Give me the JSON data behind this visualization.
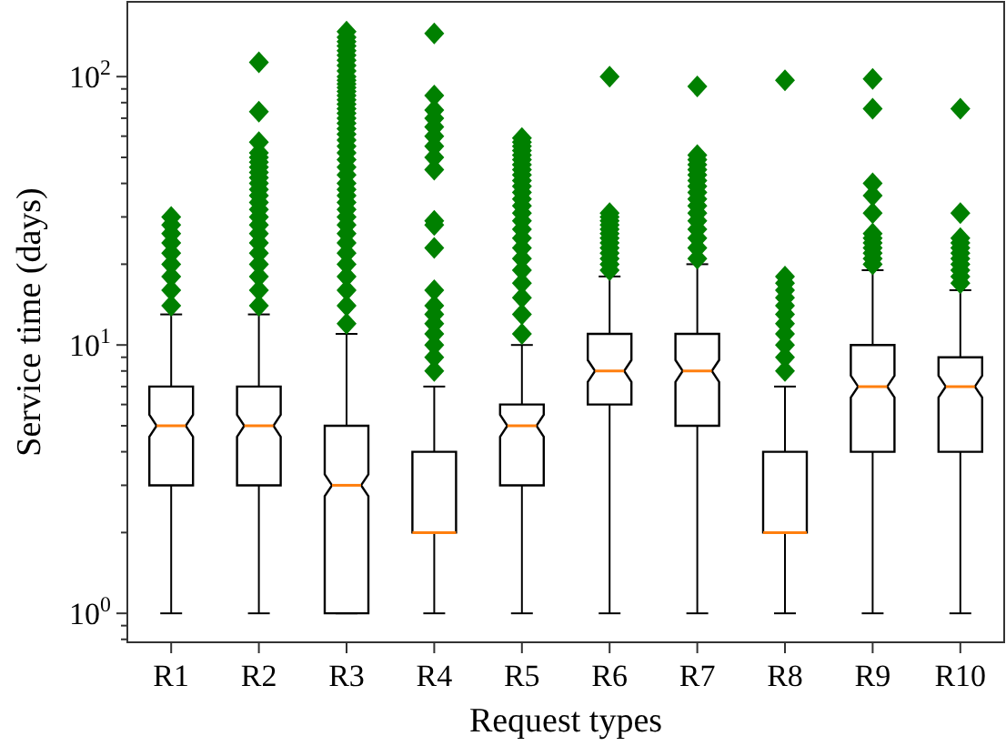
{
  "chart_data": {
    "type": "box",
    "xlabel": "Request types",
    "ylabel": "Service time (days)",
    "categories": [
      "R1",
      "R2",
      "R3",
      "R4",
      "R5",
      "R6",
      "R7",
      "R8",
      "R9",
      "R10"
    ],
    "log": true,
    "ylim": [
      0.78,
      190
    ],
    "yticks": [
      {
        "value": 1,
        "label": "10$^{0}$"
      },
      {
        "value": 10,
        "label": "10$^{1}$"
      },
      {
        "value": 100,
        "label": "10$^{2}$"
      },
      {
        "value": 0.8,
        "label": null
      },
      {
        "value": 0.9,
        "label": null
      },
      {
        "value": 2,
        "label": null
      },
      {
        "value": 3,
        "label": null
      },
      {
        "value": 4,
        "label": null
      },
      {
        "value": 5,
        "label": null
      },
      {
        "value": 6,
        "label": null
      },
      {
        "value": 7,
        "label": null
      },
      {
        "value": 8,
        "label": null
      },
      {
        "value": 9,
        "label": null
      },
      {
        "value": 20,
        "label": null
      },
      {
        "value": 30,
        "label": null
      },
      {
        "value": 40,
        "label": null
      },
      {
        "value": 50,
        "label": null
      },
      {
        "value": 60,
        "label": null
      },
      {
        "value": 70,
        "label": null
      },
      {
        "value": 80,
        "label": null
      },
      {
        "value": 90,
        "label": null
      }
    ],
    "grid": false,
    "marker": "diamond",
    "series": [
      {
        "color": "#ffffff",
        "boxes": [
          {
            "low": 1,
            "q1": 3,
            "median": 5,
            "q3": 7,
            "high": 13
          },
          {
            "low": 1,
            "q1": 3,
            "median": 5,
            "q3": 7,
            "high": 13
          },
          {
            "low": 1,
            "q1": 1,
            "median": 3,
            "q3": 5,
            "high": 11
          },
          {
            "low": 1,
            "q1": 2,
            "median": 2,
            "q3": 4,
            "high": 7
          },
          {
            "low": 1,
            "q1": 3,
            "median": 5,
            "q3": 6,
            "high": 10
          },
          {
            "low": 1,
            "q1": 6,
            "median": 8,
            "q3": 11,
            "high": 18
          },
          {
            "low": 1,
            "q1": 5,
            "median": 8,
            "q3": 11,
            "high": 20
          },
          {
            "low": 1,
            "q1": 2,
            "median": 2,
            "q3": 4,
            "high": 7
          },
          {
            "low": 1,
            "q1": 4,
            "median": 7,
            "q3": 10,
            "high": 19
          },
          {
            "low": 1,
            "q1": 4,
            "median": 7,
            "q3": 9,
            "high": 16
          }
        ]
      },
      {
        "type": "scatter",
        "color": "#008000",
        "x": [
          "R1",
          "R1",
          "R1",
          "R1",
          "R1",
          "R1",
          "R1",
          "R1",
          "R1",
          "R2",
          "R2",
          "R2",
          "R2",
          "R2",
          "R2",
          "R2",
          "R2",
          "R2",
          "R2",
          "R2",
          "R2",
          "R2",
          "R2",
          "R2",
          "R2",
          "R2",
          "R2",
          "R2",
          "R2",
          "R2",
          "R2",
          "R2",
          "R3",
          "R3",
          "R3",
          "R3",
          "R3",
          "R3",
          "R3",
          "R3",
          "R3",
          "R3",
          "R3",
          "R3",
          "R3",
          "R3",
          "R3",
          "R3",
          "R3",
          "R3",
          "R3",
          "R3",
          "R3",
          "R3",
          "R3",
          "R3",
          "R3",
          "R3",
          "R3",
          "R3",
          "R3",
          "R3",
          "R3",
          "R3",
          "R3",
          "R3",
          "R3",
          "R3",
          "R3",
          "R3",
          "R3",
          "R3",
          "R3",
          "R3",
          "R3",
          "R3",
          "R4",
          "R4",
          "R4",
          "R4",
          "R4",
          "R4",
          "R4",
          "R4",
          "R4",
          "R4",
          "R4",
          "R4",
          "R4",
          "R4",
          "R4",
          "R4",
          "R4",
          "R4",
          "R4",
          "R4",
          "R5",
          "R5",
          "R5",
          "R5",
          "R5",
          "R5",
          "R5",
          "R5",
          "R5",
          "R5",
          "R5",
          "R5",
          "R5",
          "R5",
          "R5",
          "R5",
          "R5",
          "R5",
          "R5",
          "R5",
          "R5",
          "R5",
          "R5",
          "R5",
          "R5",
          "R6",
          "R6",
          "R6",
          "R6",
          "R6",
          "R6",
          "R6",
          "R6",
          "R6",
          "R6",
          "R6",
          "R6",
          "R6",
          "R6",
          "R7",
          "R7",
          "R7",
          "R7",
          "R7",
          "R7",
          "R7",
          "R7",
          "R7",
          "R7",
          "R7",
          "R7",
          "R7",
          "R7",
          "R7",
          "R7",
          "R7",
          "R8",
          "R8",
          "R8",
          "R8",
          "R8",
          "R8",
          "R8",
          "R8",
          "R8",
          "R8",
          "R8",
          "R8",
          "R9",
          "R9",
          "R9",
          "R9",
          "R9",
          "R9",
          "R9",
          "R9",
          "R9",
          "R9",
          "R9",
          "R9",
          "R10",
          "R10",
          "R10",
          "R10",
          "R10",
          "R10",
          "R10",
          "R10",
          "R10",
          "R10",
          "R10"
        ],
        "values": [
          14,
          16,
          18,
          20,
          22,
          24,
          26,
          28,
          30,
          14,
          16,
          18,
          20,
          22,
          24,
          26,
          28,
          30,
          32,
          34,
          36,
          38,
          40,
          42,
          44,
          46,
          48,
          50,
          52,
          57,
          74,
          113,
          12,
          14,
          16,
          18,
          20,
          22,
          24,
          26,
          28,
          30,
          32,
          34,
          36,
          38,
          40,
          43,
          46,
          49,
          52,
          55,
          58,
          61,
          64,
          67,
          70,
          73,
          76,
          79,
          82,
          85,
          88,
          91,
          94,
          97,
          100,
          105,
          110,
          115,
          120,
          125,
          130,
          135,
          140,
          147,
          8,
          9,
          10,
          11,
          12,
          13,
          14,
          16,
          23,
          28,
          29,
          45,
          50,
          55,
          60,
          65,
          70,
          75,
          85,
          145,
          11,
          13,
          15,
          17,
          19,
          21,
          23,
          25,
          27,
          29,
          31,
          33,
          35,
          37,
          39,
          41,
          43,
          45,
          47,
          49,
          51,
          53,
          55,
          57,
          59,
          19,
          20,
          21,
          22,
          23,
          24,
          25,
          26,
          27,
          28,
          29,
          30,
          31,
          100,
          21,
          23,
          25,
          27,
          29,
          31,
          33,
          35,
          37,
          39,
          41,
          43,
          45,
          47,
          49,
          51,
          92,
          8,
          9,
          10,
          11,
          12,
          13,
          14,
          15,
          16,
          17,
          18,
          97,
          20,
          21,
          22,
          23,
          24,
          25,
          26,
          31,
          36,
          40,
          76,
          98,
          17,
          18,
          19,
          20,
          21,
          22,
          23,
          24,
          25,
          31,
          76
        ]
      }
    ]
  }
}
